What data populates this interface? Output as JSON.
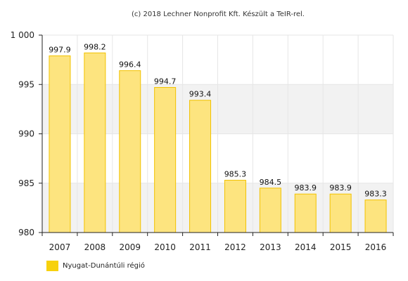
{
  "chart_data": {
    "type": "bar",
    "title": "(c) 2018 Lechner Nonprofit Kft. Készült a TeIR-rel.",
    "categories": [
      "2007",
      "2008",
      "2009",
      "2010",
      "2011",
      "2012",
      "2013",
      "2014",
      "2015",
      "2016"
    ],
    "series": [
      {
        "name": "Nyugat-Dunántúli régió",
        "values": [
          997.9,
          998.2,
          996.4,
          994.7,
          993.4,
          985.3,
          984.5,
          983.9,
          983.9,
          983.3
        ],
        "labels": [
          "997.9",
          "998.2",
          "996.4",
          "994.7",
          "993.4",
          "985.3",
          "984.5",
          "983.9",
          "983.9",
          "983.3"
        ]
      }
    ],
    "ylim": [
      980,
      1000
    ],
    "yticks": [
      980,
      985,
      990,
      995,
      1000
    ],
    "ytick_labels": [
      "980",
      "985",
      "990",
      "995",
      "1 000"
    ],
    "grid": true,
    "legend_position": "bottom-left",
    "colors": {
      "bar_fill": "#fde47f",
      "bar_stroke": "#f2c200",
      "legend_swatch": "#f7d10d",
      "band": "#f2f2f2",
      "axis": "#222222"
    }
  }
}
